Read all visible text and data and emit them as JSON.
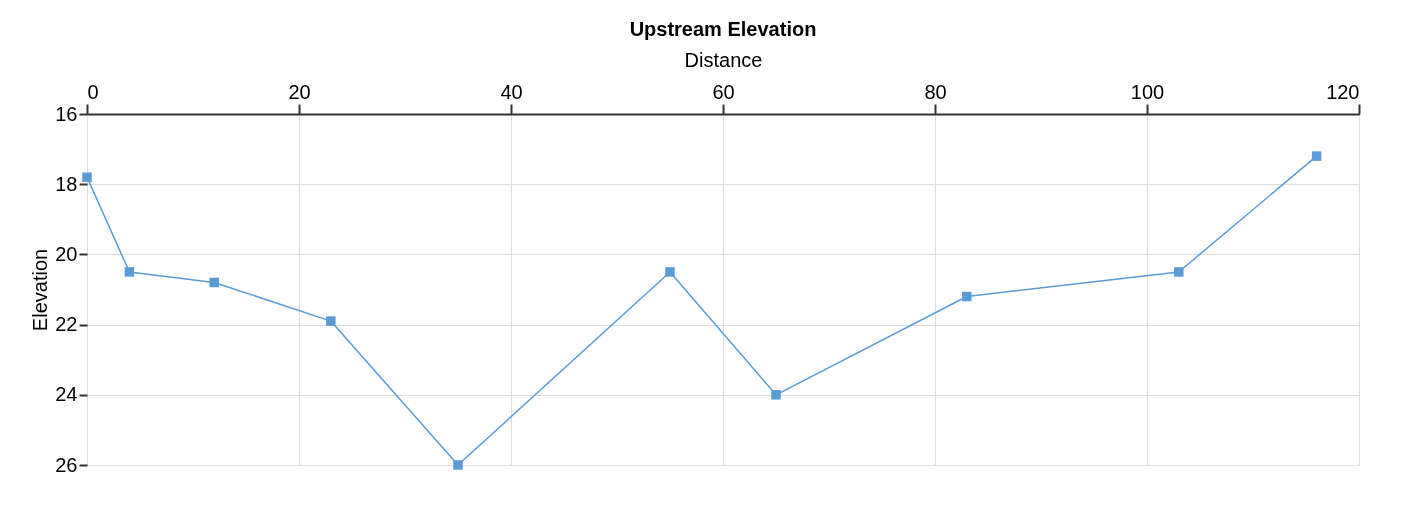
{
  "chart_data": {
    "type": "line",
    "title": "Upstream Elevation",
    "xlabel": "Distance",
    "ylabel": "Elevation",
    "x": [
      0,
      4,
      12,
      23,
      35,
      55,
      65,
      83,
      103,
      116
    ],
    "series": [
      {
        "color": "#5b9bd5",
        "values": [
          17.8,
          20.5,
          20.8,
          21.9,
          26,
          20.5,
          24,
          21.2,
          20.5,
          17.2
        ]
      }
    ],
    "xlim": [
      0,
      120
    ],
    "xticks": [
      0,
      20,
      40,
      60,
      80,
      100,
      120
    ],
    "ylim": [
      26,
      16
    ],
    "yticks": [
      16,
      18,
      20,
      22,
      24,
      26
    ],
    "grid": true,
    "marker": "square",
    "line_style": "solid"
  }
}
